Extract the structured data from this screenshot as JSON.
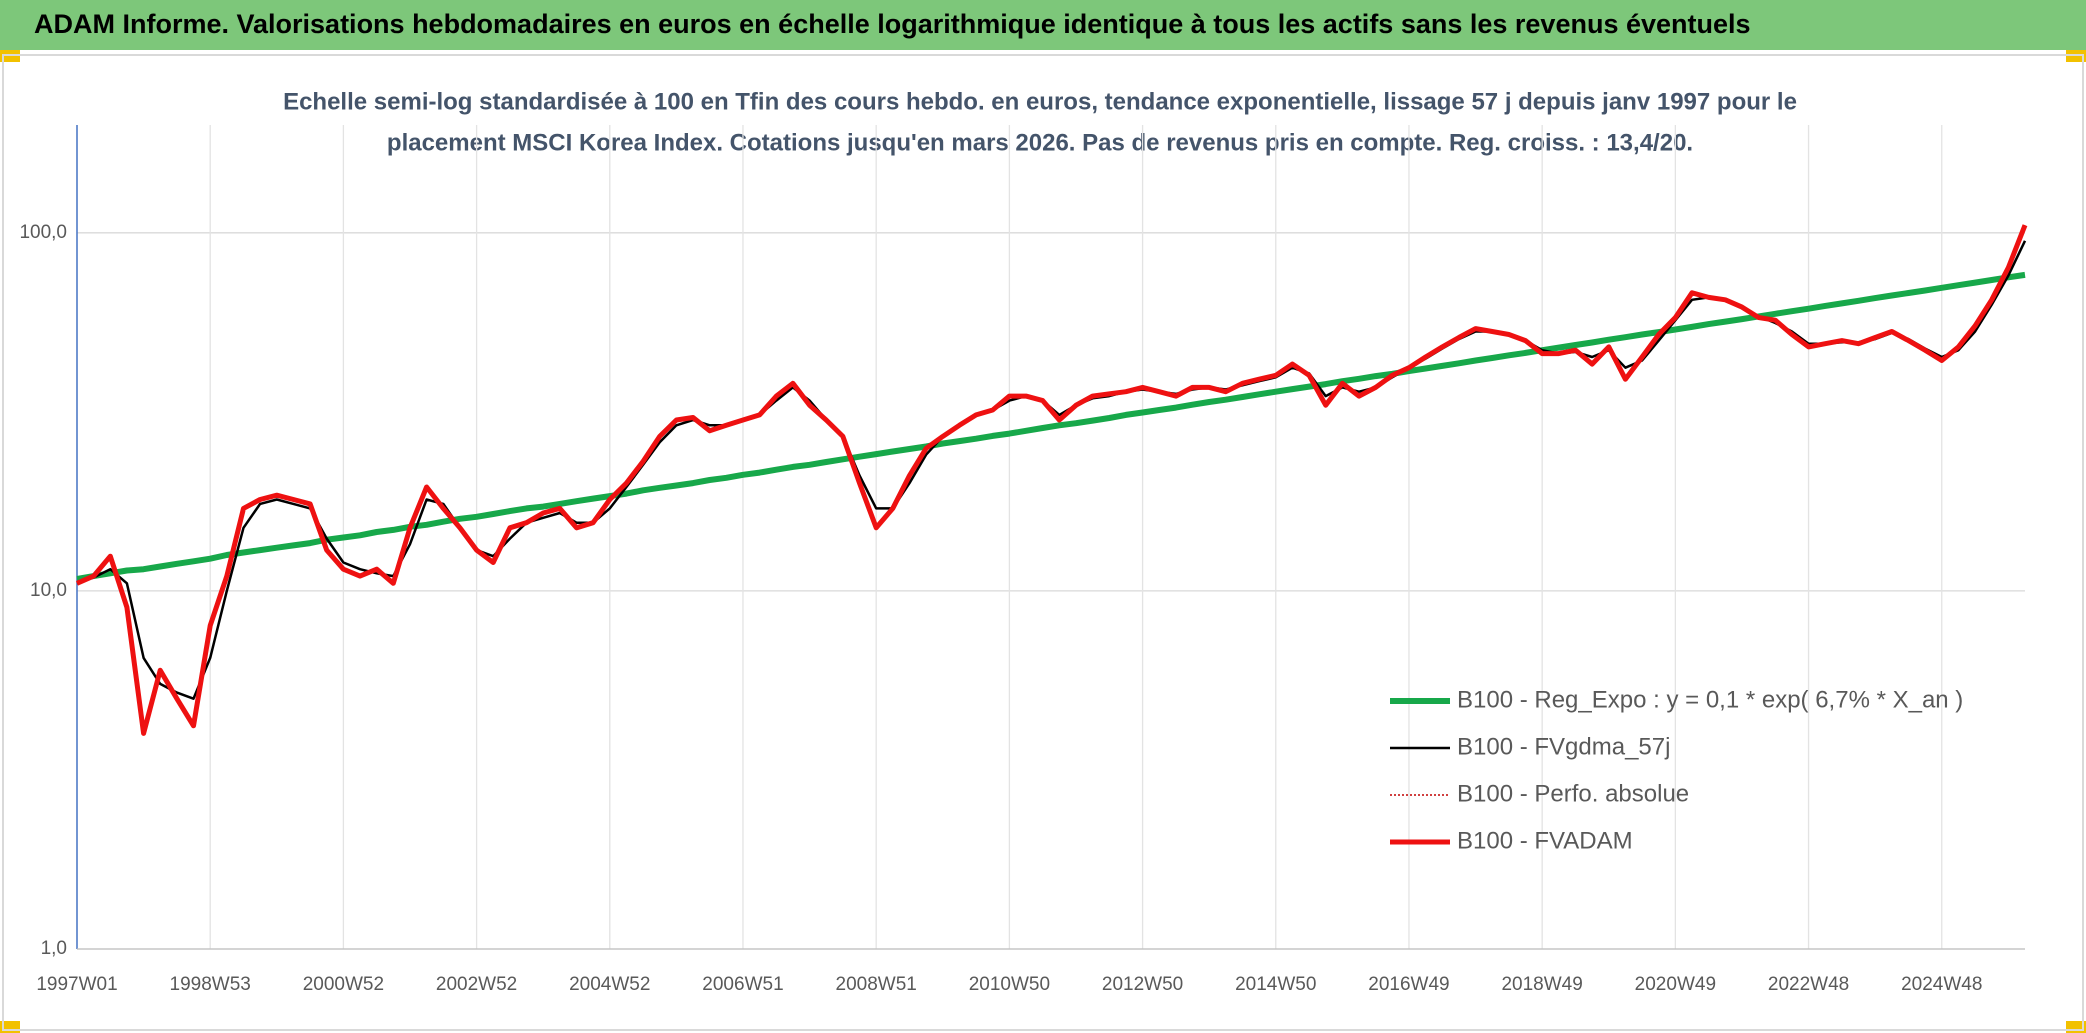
{
  "chart_data": {
    "type": "line",
    "title": "ADAM Informe. Valorisations hebdomadaires en euros en échelle logarithmique identique à tous les actifs sans les revenus éventuels",
    "subtitle": [
      "Echelle semi-log standardisée à 100 en Tfin des cours hebdo. en euros, tendance exponentielle, lissage 57 j depuis janv 1997 pour le",
      "placement MSCI Korea Index. Cotations jusqu'en mars 2026. Pas de revenus pris en compte. Reg. croiss. : 13,4/20."
    ],
    "log_scale": true,
    "grid": true,
    "legend": "lower right",
    "ylim": [
      1,
      200
    ],
    "yticks": [
      {
        "value": 1,
        "label": "1,0"
      },
      {
        "value": 10,
        "label": "10,0"
      },
      {
        "value": 100,
        "label": "100,0"
      }
    ],
    "categories": [
      "1997W01",
      null,
      null,
      null,
      null,
      null,
      null,
      null,
      "1998W53",
      null,
      null,
      null,
      null,
      null,
      null,
      null,
      "2000W52",
      null,
      null,
      null,
      null,
      null,
      null,
      null,
      "2002W52",
      null,
      null,
      null,
      null,
      null,
      null,
      null,
      "2004W52",
      null,
      null,
      null,
      null,
      null,
      null,
      null,
      "2006W51",
      null,
      null,
      null,
      null,
      null,
      null,
      null,
      "2008W51",
      null,
      null,
      null,
      null,
      null,
      null,
      null,
      "2010W50",
      null,
      null,
      null,
      null,
      null,
      null,
      null,
      "2012W50",
      null,
      null,
      null,
      null,
      null,
      null,
      null,
      "2014W50",
      null,
      null,
      null,
      null,
      null,
      null,
      null,
      "2016W49",
      null,
      null,
      null,
      null,
      null,
      null,
      null,
      "2018W49",
      null,
      null,
      null,
      null,
      null,
      null,
      null,
      "2020W49",
      null,
      null,
      null,
      null,
      null,
      null,
      null,
      "2022W48",
      null,
      null,
      null,
      null,
      null,
      null,
      null,
      "2024W48",
      null,
      null,
      null,
      null,
      null
    ],
    "series": [
      {
        "name": "B100 - Reg_Expo : y = 0,1 * exp( 6,7% *  X_an )",
        "color": "#17a84a",
        "width": 6,
        "dash": false,
        "values": [
          10.8,
          11.0,
          11.2,
          11.4,
          11.5,
          11.7,
          11.9,
          12.1,
          12.3,
          12.6,
          12.8,
          13.0,
          13.2,
          13.4,
          13.6,
          13.9,
          14.1,
          14.3,
          14.6,
          14.8,
          15.1,
          15.3,
          15.6,
          15.9,
          16.1,
          16.4,
          16.7,
          17.0,
          17.2,
          17.5,
          17.8,
          18.1,
          18.4,
          18.7,
          19.1,
          19.4,
          19.7,
          20.0,
          20.4,
          20.7,
          21.1,
          21.4,
          21.8,
          22.2,
          22.5,
          22.9,
          23.3,
          23.7,
          24.1,
          24.5,
          24.9,
          25.3,
          25.8,
          26.2,
          26.6,
          27.1,
          27.5,
          28.0,
          28.5,
          29.0,
          29.4,
          29.9,
          30.4,
          31.0,
          31.5,
          32.0,
          32.5,
          33.1,
          33.7,
          34.2,
          34.8,
          35.4,
          36.0,
          36.6,
          37.2,
          37.8,
          38.5,
          39.1,
          39.8,
          40.4,
          41.1,
          41.8,
          42.5,
          43.2,
          44.0,
          44.7,
          45.5,
          46.2,
          47.0,
          47.8,
          48.6,
          49.4,
          50.3,
          51.1,
          52.0,
          52.8,
          53.7,
          54.6,
          55.6,
          56.5,
          57.4,
          58.4,
          59.4,
          60.4,
          61.4,
          62.5,
          63.5,
          64.6,
          65.7,
          66.8,
          67.9,
          69.0,
          70.2,
          71.4,
          72.6,
          73.8,
          75.1,
          76.3
        ]
      },
      {
        "name": "B100 - FVgdma_57j",
        "color": "#000000",
        "width": 2.5,
        "dash": false,
        "values": [
          10.5,
          10.9,
          11.5,
          10.5,
          6.5,
          5.5,
          5.2,
          5.0,
          6.5,
          10,
          15,
          17.5,
          18,
          17.5,
          17,
          14,
          12,
          11.5,
          11.2,
          11,
          13.5,
          18,
          17.5,
          15,
          13,
          12.5,
          14,
          15.5,
          16,
          16.5,
          15.5,
          15.5,
          17,
          19.5,
          22.5,
          26,
          29,
          30,
          29,
          29,
          30,
          31,
          34,
          37,
          34,
          30,
          27,
          21,
          17,
          17,
          20,
          24,
          27,
          29,
          31,
          32,
          34,
          35,
          34,
          31,
          33,
          34.5,
          35,
          36,
          36.5,
          36,
          35.5,
          36.5,
          37,
          36.5,
          37.5,
          38.5,
          39.5,
          42,
          40.5,
          35,
          37,
          36,
          37,
          39.5,
          42,
          44.5,
          47.5,
          50.5,
          53,
          53,
          52,
          50,
          47,
          46,
          46.5,
          45,
          47,
          42,
          44,
          50,
          57,
          65,
          66,
          65,
          62,
          58.5,
          56,
          53,
          49,
          49,
          49.5,
          49.5,
          50.5,
          52.5,
          50.5,
          47.5,
          45,
          47,
          53,
          63,
          76,
          95
        ]
      },
      {
        "name": "B100 - Perfo. absolue",
        "color": "#c00000",
        "width": 1.5,
        "dash": true,
        "values": [
          10.5,
          11,
          12.5,
          9,
          4,
          6,
          5,
          4.2,
          8,
          11,
          17,
          18,
          18.5,
          18,
          17.5,
          13,
          11.5,
          11,
          11.5,
          10.5,
          15,
          19.5,
          17,
          15,
          13,
          12,
          15,
          15.5,
          16.5,
          17,
          15,
          15.5,
          18,
          20,
          23,
          27,
          30,
          30.5,
          28,
          29,
          30,
          31,
          35,
          38,
          33,
          30,
          27,
          20,
          15,
          17,
          21,
          25,
          27,
          29,
          31,
          32,
          35,
          35,
          34,
          30,
          33,
          35,
          35.5,
          36,
          37,
          36,
          35,
          37,
          37,
          36,
          38,
          39,
          40,
          43,
          40,
          33,
          38,
          35,
          37,
          40,
          42,
          45,
          48,
          51,
          54,
          53,
          52,
          50,
          46,
          46,
          47,
          43,
          48,
          39,
          45,
          52,
          58,
          68,
          66,
          65,
          62,
          58,
          57,
          52,
          48,
          49,
          50,
          49,
          51,
          53,
          50,
          47,
          44,
          48,
          55,
          65,
          80,
          105
        ]
      },
      {
        "name": "B100 - FVADAM",
        "color": "#ee1111",
        "width": 5,
        "dash": false,
        "values": [
          10.5,
          11,
          12.5,
          9,
          4,
          6,
          5,
          4.2,
          8,
          11,
          17,
          18,
          18.5,
          18,
          17.5,
          13,
          11.5,
          11,
          11.5,
          10.5,
          15,
          19.5,
          17,
          15,
          13,
          12,
          15,
          15.5,
          16.5,
          17,
          15,
          15.5,
          18,
          20,
          23,
          27,
          30,
          30.5,
          28,
          29,
          30,
          31,
          35,
          38,
          33,
          30,
          27,
          20,
          15,
          17,
          21,
          25,
          27,
          29,
          31,
          32,
          35,
          35,
          34,
          30,
          33,
          35,
          35.5,
          36,
          37,
          36,
          35,
          37,
          37,
          36,
          38,
          39,
          40,
          43,
          40,
          33,
          38,
          35,
          37,
          40,
          42,
          45,
          48,
          51,
          54,
          53,
          52,
          50,
          46,
          46,
          47,
          43,
          48,
          39,
          45,
          52,
          58,
          68,
          66,
          65,
          62,
          58,
          57,
          52,
          48,
          49,
          50,
          49,
          51,
          53,
          50,
          47,
          44,
          48,
          55,
          65,
          80,
          105
        ]
      }
    ]
  }
}
